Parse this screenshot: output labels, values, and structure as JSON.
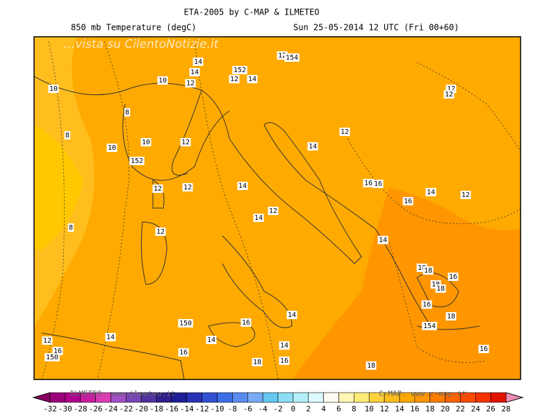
{
  "header": {
    "title": "ETA-2005 by C-MAP & ILMETEO",
    "field": "850 mb Temperature (degC)",
    "valid": "Sun 25-05-2014 12 UTC (Fri 00+60)"
  },
  "watermark": "...vista su CilentoNotizie.it",
  "contour_labels": [
    "14",
    "14",
    "152",
    "12",
    "14",
    "12",
    "154",
    "10",
    "10",
    "12",
    "12",
    "12",
    "8",
    "8",
    "10",
    "10",
    "12",
    "12",
    "14",
    "152",
    "12",
    "12",
    "14",
    "16",
    "16",
    "14",
    "12",
    "16",
    "12",
    "14",
    "8",
    "12",
    "14",
    "18",
    "18",
    "16",
    "18",
    "18",
    "16",
    "14",
    "18",
    "150",
    "16",
    "154",
    "14",
    "14",
    "12",
    "14",
    "16",
    "16",
    "150",
    "16",
    "18",
    "16",
    "18"
  ],
  "colorbar": {
    "ticks": [
      -32,
      -30,
      -28,
      -26,
      -24,
      -22,
      -20,
      -18,
      -16,
      -14,
      -12,
      -10,
      -8,
      -6,
      -4,
      -2,
      0,
      2,
      4,
      6,
      8,
      10,
      12,
      14,
      16,
      18,
      20,
      22,
      24,
      26,
      28
    ],
    "colors": [
      "#99007a",
      "#b0008c",
      "#c81ea0",
      "#dc3cb4",
      "#a050c8",
      "#7846b4",
      "#5032a0",
      "#321e8c",
      "#1e1e96",
      "#2832b4",
      "#3250d2",
      "#3c6ee6",
      "#5a8cf0",
      "#78aaf5",
      "#64c8f0",
      "#8cdcf5",
      "#b4f0fa",
      "#dcfaff",
      "#fffaf0",
      "#fff5b4",
      "#ffeb78",
      "#ffd23c",
      "#ffbe1e",
      "#ffaa00",
      "#ff9600",
      "#ff7d00",
      "#ff6400",
      "#ff4b00",
      "#f53200",
      "#e11400"
    ],
    "under_color": "#8c0064",
    "over_color": "#f08cb4"
  },
  "footer": {
    "left": "ILMETEO: www.ilmeteo.it",
    "right": "C-MAP: www.c-map.it"
  }
}
